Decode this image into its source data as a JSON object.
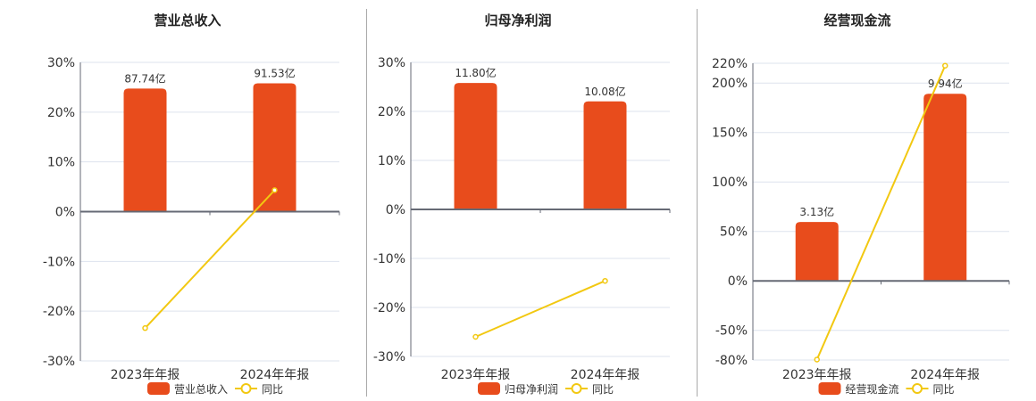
{
  "chart_data": [
    {
      "type": "bar+line",
      "title": "营业总收入",
      "categories": [
        "2023年年报",
        "2024年年报"
      ],
      "bar_series": {
        "name": "营业总收入",
        "values": [
          87.74,
          91.53
        ],
        "labels": [
          "87.74亿",
          "91.53亿"
        ],
        "unit": "亿"
      },
      "line_series": {
        "name": "同比",
        "values": [
          -23.4,
          4.32
        ],
        "unit": "%"
      },
      "yticks": [
        "30%",
        "20%",
        "10%",
        "0%",
        "-10%",
        "-20%",
        "-30%"
      ],
      "ytick_values": [
        30,
        20,
        10,
        0,
        -10,
        -20,
        -30
      ],
      "ylim": [
        -30,
        30
      ],
      "grid": true,
      "legend": "bottom"
    },
    {
      "type": "bar+line",
      "title": "归母净利润",
      "categories": [
        "2023年年报",
        "2024年年报"
      ],
      "bar_series": {
        "name": "归母净利润",
        "values": [
          11.8,
          10.08
        ],
        "labels": [
          "11.80亿",
          "10.08亿"
        ],
        "unit": "亿"
      },
      "line_series": {
        "name": "同比",
        "values": [
          -26.0,
          -14.58
        ],
        "unit": "%"
      },
      "yticks": [
        "30%",
        "20%",
        "10%",
        "0%",
        "-10%",
        "-20%",
        "-30%"
      ],
      "ytick_values": [
        30,
        20,
        10,
        0,
        -10,
        -20,
        -30
      ],
      "ylim": [
        -30,
        30
      ],
      "grid": true,
      "legend": "bottom"
    },
    {
      "type": "bar+line",
      "title": "经营现金流",
      "categories": [
        "2023年年报",
        "2024年年报"
      ],
      "bar_series": {
        "name": "经营现金流",
        "values": [
          3.13,
          9.94
        ],
        "labels": [
          "3.13亿",
          "9.94亿"
        ],
        "unit": "亿"
      },
      "line_series": {
        "name": "同比",
        "values": [
          -79.5,
          217.57
        ],
        "unit": "%"
      },
      "yticks": [
        "220%",
        "200%",
        "150%",
        "100%",
        "50%",
        "0%",
        "-50%",
        "-80%"
      ],
      "ytick_values": [
        220,
        200,
        150,
        100,
        50,
        0,
        -50,
        -80
      ],
      "ylim": [
        -80,
        220
      ],
      "grid": true,
      "legend": "bottom"
    }
  ],
  "colors": {
    "bar": "#e84c1c",
    "line": "#f2c811",
    "grid": "#dde3ee",
    "axis": "#666a75",
    "text": "#333333"
  }
}
